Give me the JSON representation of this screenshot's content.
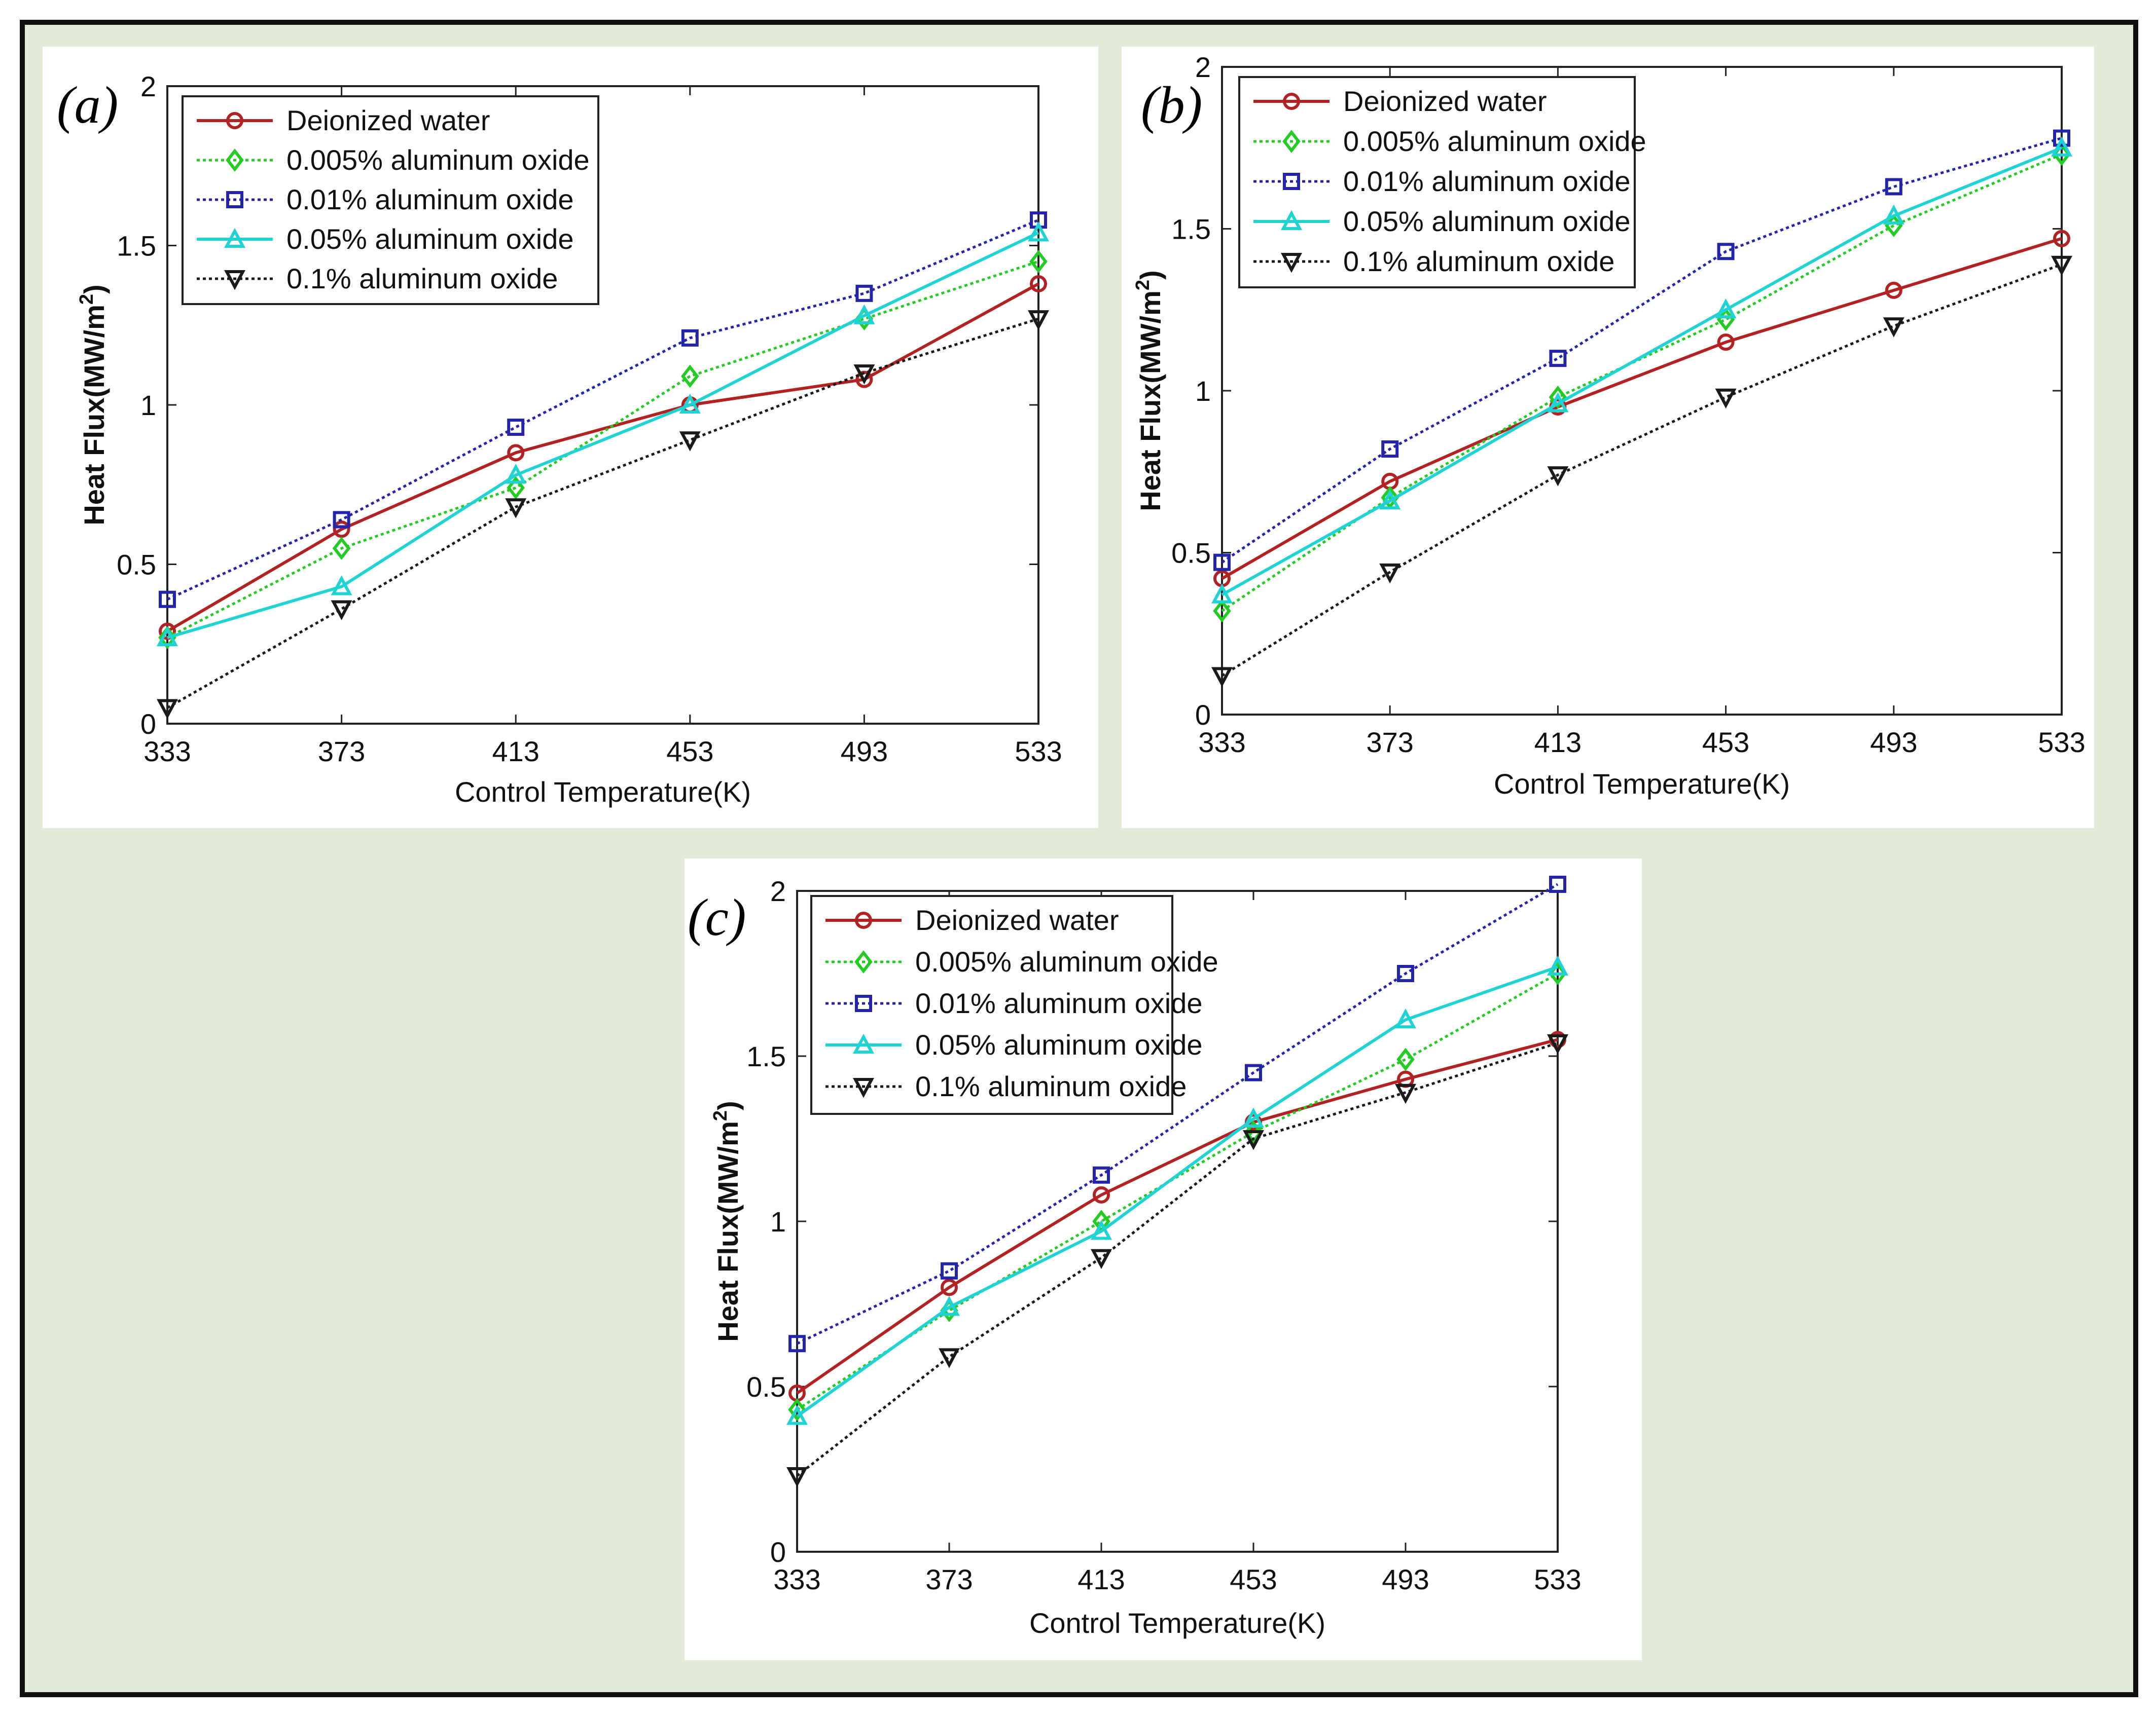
{
  "figure": {
    "background_color": "#e3ecd8",
    "border_color": "#111111",
    "panel_color": "#ffffff"
  },
  "series_styles": [
    {
      "name": "Deionized water",
      "color": "#b22222",
      "marker": "circle",
      "dash": "solid"
    },
    {
      "name": "0.005% aluminum oxide",
      "color": "#22cc22",
      "marker": "diamond",
      "dash": "dotted"
    },
    {
      "name": "0.01% aluminum oxide",
      "color": "#2424a8",
      "marker": "square",
      "dash": "dotted"
    },
    {
      "name": "0.05% aluminum oxide",
      "color": "#1fd3d3",
      "marker": "triangle-up",
      "dash": "solid"
    },
    {
      "name": "0.1% aluminum oxide",
      "color": "#1a1a1a",
      "marker": "triangle-down",
      "dash": "dotted"
    }
  ],
  "chart_data": [
    {
      "panel_label": "(a)",
      "type": "line",
      "title": "",
      "xlabel": "Control Temperature(K)",
      "ylabel": "Heat Flux(MW/m",
      "ylabel_superscript": "2",
      "ylabel_suffix": ")",
      "x": [
        333,
        373,
        413,
        453,
        493,
        533
      ],
      "xticks": [
        "333",
        "373",
        "413",
        "453",
        "493",
        "533"
      ],
      "yticks": [
        "0",
        "0.5",
        "1",
        "1.5",
        "2"
      ],
      "ylim": [
        0,
        2
      ],
      "xlim": [
        333,
        533
      ],
      "legend_position": "top-left",
      "series": [
        {
          "name": "Deionized water",
          "values": [
            0.29,
            0.61,
            0.85,
            1.0,
            1.08,
            1.38
          ]
        },
        {
          "name": "0.005% aluminum oxide",
          "values": [
            0.27,
            0.55,
            0.74,
            1.09,
            1.27,
            1.45
          ]
        },
        {
          "name": "0.01% aluminum oxide",
          "values": [
            0.39,
            0.64,
            0.93,
            1.21,
            1.35,
            1.58
          ]
        },
        {
          "name": "0.05% aluminum oxide",
          "values": [
            0.27,
            0.43,
            0.78,
            1.0,
            1.28,
            1.54
          ]
        },
        {
          "name": "0.1% aluminum oxide",
          "values": [
            0.05,
            0.36,
            0.68,
            0.89,
            1.1,
            1.27
          ]
        }
      ]
    },
    {
      "panel_label": "(b)",
      "type": "line",
      "title": "",
      "xlabel": "Control Temperature(K)",
      "ylabel": "Heat Flux(MW/m",
      "ylabel_superscript": "2",
      "ylabel_suffix": ")",
      "x": [
        333,
        373,
        413,
        453,
        493,
        533
      ],
      "xticks": [
        "333",
        "373",
        "413",
        "453",
        "493",
        "533"
      ],
      "yticks": [
        "0",
        "0.5",
        "1",
        "1.5",
        "2"
      ],
      "ylim": [
        0,
        2
      ],
      "xlim": [
        333,
        533
      ],
      "legend_position": "top-left",
      "series": [
        {
          "name": "Deionized water",
          "values": [
            0.42,
            0.72,
            0.95,
            1.15,
            1.31,
            1.47
          ]
        },
        {
          "name": "0.005% aluminum oxide",
          "values": [
            0.32,
            0.67,
            0.98,
            1.22,
            1.51,
            1.73
          ]
        },
        {
          "name": "0.01% aluminum oxide",
          "values": [
            0.47,
            0.82,
            1.1,
            1.43,
            1.63,
            1.78
          ]
        },
        {
          "name": "0.05% aluminum oxide",
          "values": [
            0.37,
            0.66,
            0.96,
            1.25,
            1.54,
            1.75
          ]
        },
        {
          "name": "0.1% aluminum oxide",
          "values": [
            0.12,
            0.44,
            0.74,
            0.98,
            1.2,
            1.39
          ]
        }
      ]
    },
    {
      "panel_label": "(c)",
      "type": "line",
      "title": "",
      "xlabel": "Control Temperature(K)",
      "ylabel": "Heat Flux(MW/m",
      "ylabel_superscript": "2",
      "ylabel_suffix": ")",
      "x": [
        333,
        373,
        413,
        453,
        493,
        533
      ],
      "xticks": [
        "333",
        "373",
        "413",
        "453",
        "493",
        "533"
      ],
      "yticks": [
        "0",
        "0.5",
        "1",
        "1.5",
        "2"
      ],
      "ylim": [
        0,
        2
      ],
      "xlim": [
        333,
        533
      ],
      "legend_position": "top-left",
      "series": [
        {
          "name": "Deionized water",
          "values": [
            0.48,
            0.8,
            1.08,
            1.3,
            1.43,
            1.55
          ]
        },
        {
          "name": "0.005% aluminum oxide",
          "values": [
            0.43,
            0.73,
            1.0,
            1.27,
            1.49,
            1.75
          ]
        },
        {
          "name": "0.01% aluminum oxide",
          "values": [
            0.63,
            0.85,
            1.14,
            1.45,
            1.75,
            2.02
          ]
        },
        {
          "name": "0.05% aluminum oxide",
          "values": [
            0.41,
            0.74,
            0.97,
            1.31,
            1.61,
            1.77
          ]
        },
        {
          "name": "0.1% aluminum oxide",
          "values": [
            0.23,
            0.59,
            0.89,
            1.25,
            1.39,
            1.54
          ]
        }
      ]
    }
  ]
}
